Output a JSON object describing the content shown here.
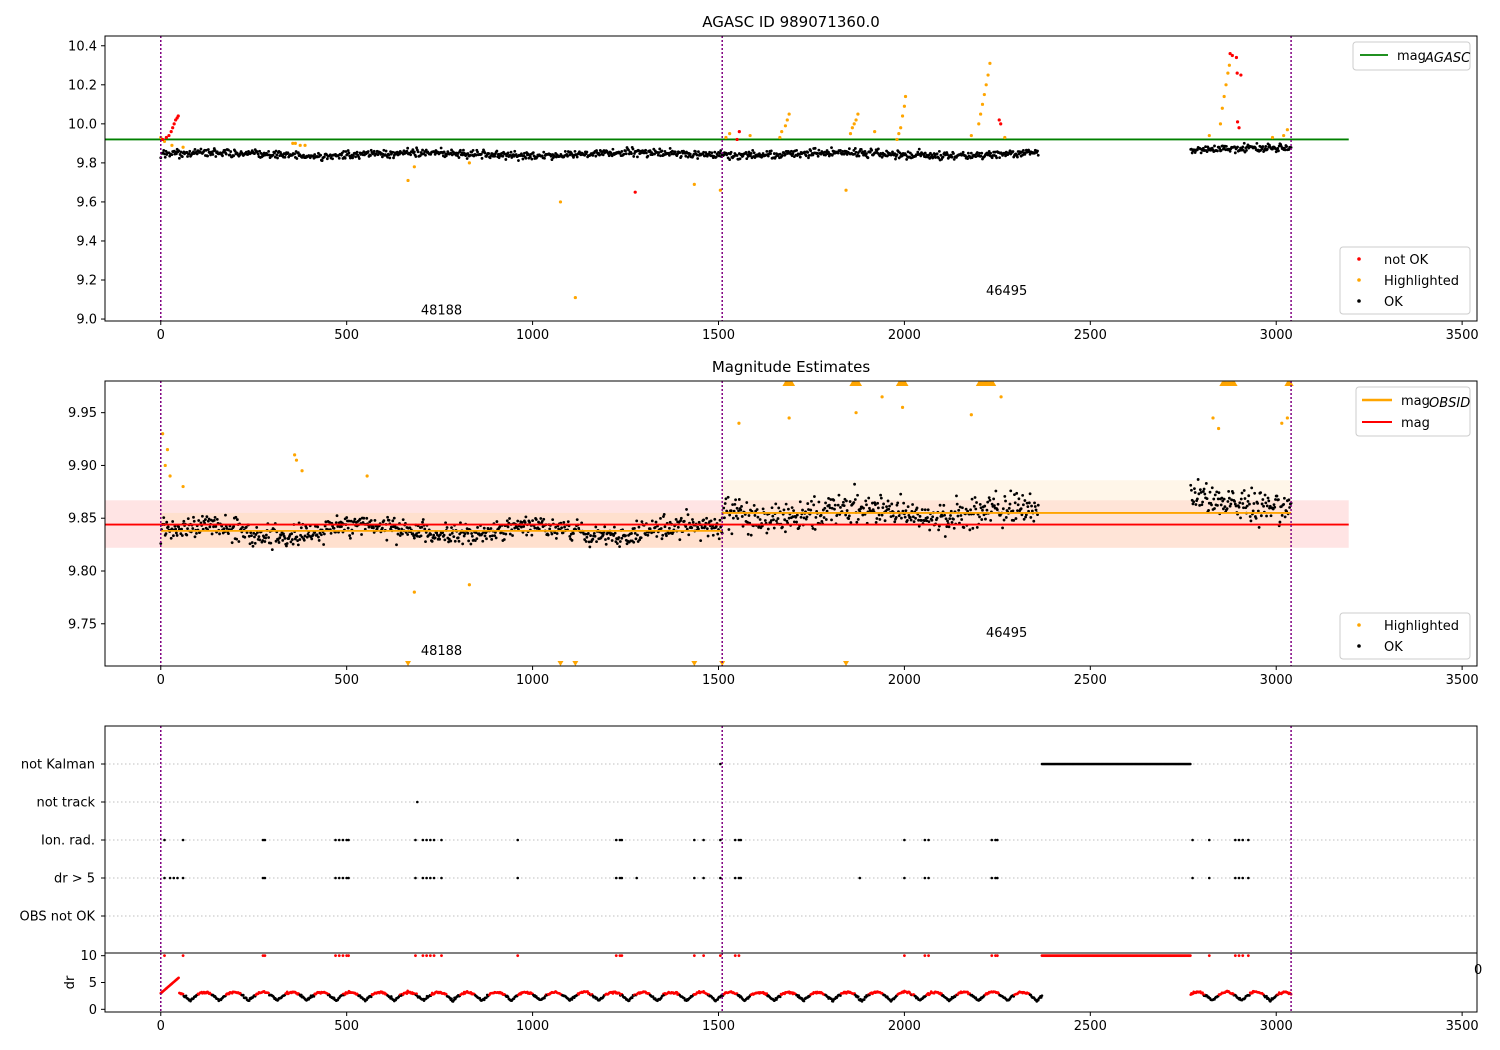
{
  "chart_data": [
    {
      "type": "scatter",
      "title": "AGASC ID 989071360.0",
      "xlim": [
        -150,
        3540
      ],
      "ylim": [
        8.99,
        10.45
      ],
      "xticks": [
        0,
        500,
        1000,
        1500,
        2000,
        2500,
        3000,
        3500
      ],
      "yticks": [
        9.0,
        9.2,
        9.4,
        9.6,
        9.8,
        10.0,
        10.2,
        10.4
      ],
      "ytick_labels": [
        "9.0",
        "9.2",
        "9.4",
        "9.6",
        "9.8",
        "10.0",
        "10.2",
        "10.4"
      ],
      "obs_boundaries": [
        0,
        1510,
        3040
      ],
      "obs_labels": [
        {
          "text": "48188",
          "x": 755,
          "y": 9.05
        },
        {
          "text": "46495",
          "x": 2275,
          "y": 9.15
        }
      ],
      "reference_lines": [
        {
          "name": "magAGASC",
          "y": 9.92,
          "x_range": [
            -150,
            3195
          ],
          "color": "#008000"
        }
      ],
      "series": [
        {
          "name": "not OK",
          "color": "#ff0000",
          "points": [
            [
              5,
              9.92
            ],
            [
              15,
              9.93
            ],
            [
              22,
              9.94
            ],
            [
              28,
              9.96
            ],
            [
              32,
              9.98
            ],
            [
              36,
              10.0
            ],
            [
              40,
              10.02
            ],
            [
              44,
              10.03
            ],
            [
              47,
              10.04
            ],
            [
              1276,
              9.65
            ],
            [
              1550,
              9.92
            ],
            [
              1556,
              9.96
            ],
            [
              2255,
              10.02
            ],
            [
              2259,
              10.0
            ],
            [
              2876,
              10.36
            ],
            [
              2882,
              10.35
            ],
            [
              2893,
              10.34
            ],
            [
              2895,
              10.26
            ],
            [
              2905,
              10.25
            ],
            [
              2896,
              10.01
            ],
            [
              2900,
              9.98
            ]
          ]
        },
        {
          "name": "Highlighted",
          "color": "#ffa500",
          "points": [
            [
              0,
              9.93
            ],
            [
              10,
              9.91
            ],
            [
              30,
              9.89
            ],
            [
              60,
              9.88
            ],
            [
              355,
              9.9
            ],
            [
              362,
              9.9
            ],
            [
              375,
              9.89
            ],
            [
              388,
              9.89
            ],
            [
              665,
              9.71
            ],
            [
              682,
              9.78
            ],
            [
              830,
              9.8
            ],
            [
              1075,
              9.6
            ],
            [
              1115,
              9.11
            ],
            [
              1435,
              9.69
            ],
            [
              1505,
              9.66
            ],
            [
              1520,
              9.93
            ],
            [
              1530,
              9.95
            ],
            [
              1585,
              9.94
            ],
            [
              1665,
              9.93
            ],
            [
              1670,
              9.96
            ],
            [
              1680,
              9.99
            ],
            [
              1685,
              10.02
            ],
            [
              1690,
              10.05
            ],
            [
              1843,
              9.66
            ],
            [
              1855,
              9.95
            ],
            [
              1860,
              9.98
            ],
            [
              1865,
              10.0
            ],
            [
              1870,
              10.02
            ],
            [
              1875,
              10.05
            ],
            [
              1920,
              9.96
            ],
            [
              1980,
              9.92
            ],
            [
              1985,
              9.95
            ],
            [
              1990,
              9.98
            ],
            [
              1995,
              10.04
            ],
            [
              2000,
              10.09
            ],
            [
              2003,
              10.14
            ],
            [
              2180,
              9.94
            ],
            [
              2200,
              10.0
            ],
            [
              2205,
              10.05
            ],
            [
              2210,
              10.1
            ],
            [
              2215,
              10.15
            ],
            [
              2220,
              10.2
            ],
            [
              2225,
              10.25
            ],
            [
              2230,
              10.31
            ],
            [
              2270,
              9.93
            ],
            [
              2820,
              9.94
            ],
            [
              2850,
              10.0
            ],
            [
              2855,
              10.08
            ],
            [
              2860,
              10.14
            ],
            [
              2865,
              10.2
            ],
            [
              2870,
              10.26
            ],
            [
              2874,
              10.3
            ],
            [
              2990,
              9.93
            ],
            [
              3020,
              9.94
            ],
            [
              3030,
              9.97
            ]
          ]
        },
        {
          "name": "OK",
          "color": "#000000",
          "segments": [
            [
              0,
              2360,
              9.845
            ],
            [
              2770,
              3040,
              9.87
            ]
          ]
        }
      ],
      "legend": {
        "location": "lower right",
        "entries": [
          "not OK",
          "Highlighted",
          "OK"
        ]
      },
      "legend_top": {
        "location": "upper right",
        "entries": [
          "magAGASC"
        ]
      }
    },
    {
      "type": "scatter",
      "title": "Magnitude Estimates",
      "xlim": [
        -150,
        3540
      ],
      "ylim": [
        9.71,
        9.98
      ],
      "xticks": [
        0,
        500,
        1000,
        1500,
        2000,
        2500,
        3000,
        3500
      ],
      "yticks": [
        9.75,
        9.8,
        9.85,
        9.9,
        9.95
      ],
      "ytick_labels": [
        "9.75",
        "9.80",
        "9.85",
        "9.90",
        "9.95"
      ],
      "obs_boundaries": [
        0,
        1510,
        3040
      ],
      "obs_labels": [
        {
          "text": "48188",
          "x": 755,
          "y": 9.725
        },
        {
          "text": "46495",
          "x": 2275,
          "y": 9.742
        }
      ],
      "bands": [
        {
          "y_range": [
            9.822,
            9.867
          ],
          "x_range": [
            -150,
            3195
          ],
          "color": "#ffb3b3",
          "opacity": 0.35
        },
        {
          "y_range": [
            9.822,
            9.855
          ],
          "x_range": [
            0,
            1510
          ],
          "color": "#ffd9a6",
          "opacity": 0.35
        },
        {
          "y_range": [
            9.822,
            9.886
          ],
          "x_range": [
            1510,
            3040
          ],
          "color": "#ffe6bf",
          "opacity": 0.35
        }
      ],
      "reference_lines": [
        {
          "name": "magOBSID",
          "y": 9.838,
          "x_range": [
            0,
            1510
          ],
          "color": "#ffa500"
        },
        {
          "name": "magOBSID",
          "y": 9.855,
          "x_range": [
            1510,
            3040
          ],
          "color": "#ffa500"
        },
        {
          "name": "mag",
          "y": 9.844,
          "x_range": [
            -150,
            3195
          ],
          "color": "#ff0000"
        }
      ],
      "series": [
        {
          "name": "Highlighted",
          "color": "#ffa500",
          "points": [
            [
              5,
              9.93
            ],
            [
              12,
              9.9
            ],
            [
              18,
              9.915
            ],
            [
              25,
              9.89
            ],
            [
              60,
              9.88
            ],
            [
              360,
              9.91
            ],
            [
              365,
              9.905
            ],
            [
              380,
              9.895
            ],
            [
              555,
              9.89
            ],
            [
              682,
              9.78
            ],
            [
              830,
              9.787
            ],
            [
              1555,
              9.94
            ],
            [
              1690,
              9.945
            ],
            [
              1870,
              9.95
            ],
            [
              1940,
              9.965
            ],
            [
              1995,
              9.955
            ],
            [
              2180,
              9.948
            ],
            [
              2260,
              9.965
            ],
            [
              2830,
              9.945
            ],
            [
              2845,
              9.935
            ],
            [
              3015,
              9.94
            ],
            [
              3030,
              9.945
            ]
          ]
        },
        {
          "name": "OK",
          "color": "#000000",
          "segments": [
            [
              0,
              1510,
              9.838
            ],
            [
              1510,
              2360,
              9.855
            ],
            [
              2770,
              3040,
              9.865
            ]
          ]
        }
      ],
      "clipped_low_markers": [
        665,
        1075,
        1115,
        1435,
        1510,
        1843
      ],
      "clipped_high_ranges": [
        [
          1680,
          1700
        ],
        [
          1860,
          1880
        ],
        [
          1985,
          2005
        ],
        [
          2200,
          2240
        ],
        [
          2855,
          2890
        ],
        [
          3030,
          3040
        ]
      ],
      "legend": {
        "location": "lower right",
        "entries": [
          "Highlighted",
          "OK"
        ]
      },
      "legend_top": {
        "location": "upper right",
        "entries": [
          "magOBSID",
          "mag"
        ]
      }
    },
    {
      "type": "scatter",
      "title": "",
      "xlim": [
        -150,
        3540
      ],
      "categories": [
        "not Kalman",
        "not track",
        "Ion. rad.",
        "dr > 5",
        "OBS not OK"
      ],
      "obs_boundaries": [
        0,
        1510,
        3040
      ],
      "flag_points": {
        "not Kalman": {
          "points": [
            1505
          ],
          "range": [
            2370,
            2770
          ]
        },
        "not track": {
          "points": [
            690
          ]
        },
        "Ion. rad.": {
          "points": [
            10,
            60,
            275,
            280,
            470,
            480,
            490,
            500,
            505,
            685,
            705,
            715,
            725,
            735,
            755,
            960,
            1225,
            1235,
            1240,
            1435,
            1460,
            1505,
            1545,
            1555,
            1560,
            2000,
            2055,
            2065,
            2235,
            2245,
            2250,
            2775,
            2820,
            2890,
            2900,
            2910,
            2925
          ]
        },
        "dr > 5": {
          "points": [
            10,
            25,
            35,
            45,
            60,
            275,
            280,
            470,
            480,
            490,
            500,
            505,
            685,
            705,
            715,
            725,
            735,
            755,
            960,
            1225,
            1235,
            1240,
            1280,
            1435,
            1460,
            1505,
            1545,
            1555,
            1560,
            1880,
            2000,
            2055,
            2065,
            2235,
            2245,
            2250,
            2775,
            2820,
            2890,
            2900,
            2910,
            2925
          ]
        },
        "OBS not OK": {
          "points": []
        }
      }
    },
    {
      "type": "scatter",
      "title": "",
      "ylabel": "dr",
      "xlim": [
        -150,
        3540
      ],
      "ylim": [
        -0.5,
        10.5
      ],
      "xticks": [
        0,
        500,
        1000,
        1500,
        2000,
        2500,
        3000,
        3500
      ],
      "yticks": [
        0,
        5,
        10
      ],
      "ytick_labels": [
        "0",
        "5",
        "10"
      ],
      "obs_boundaries": [
        0,
        1510,
        3040
      ],
      "saturated_red_range": [
        2370,
        2770
      ],
      "saturated_red_points": [
        10,
        60,
        275,
        280,
        470,
        480,
        490,
        500,
        505,
        685,
        705,
        715,
        725,
        735,
        755,
        960,
        1225,
        1235,
        1240,
        1435,
        1460,
        1505,
        1545,
        1555,
        2000,
        2055,
        2065,
        2235,
        2245,
        2250,
        2820,
        2890,
        2900,
        2910,
        2925
      ],
      "clipped_edge_label": "0"
    }
  ],
  "legend_labels": {
    "agasc_base": "mag",
    "agasc_sub": "AGASC",
    "obsid_base": "mag",
    "obsid_sub": "OBSID",
    "mag": "mag",
    "not_ok": "not OK",
    "highlighted": "Highlighted",
    "ok": "OK"
  },
  "colors": {
    "ok": "#000000",
    "highlighted": "#ffa500",
    "not_ok": "#ff0000",
    "agasc_line": "#008000",
    "obs_boundary": "#800080"
  }
}
